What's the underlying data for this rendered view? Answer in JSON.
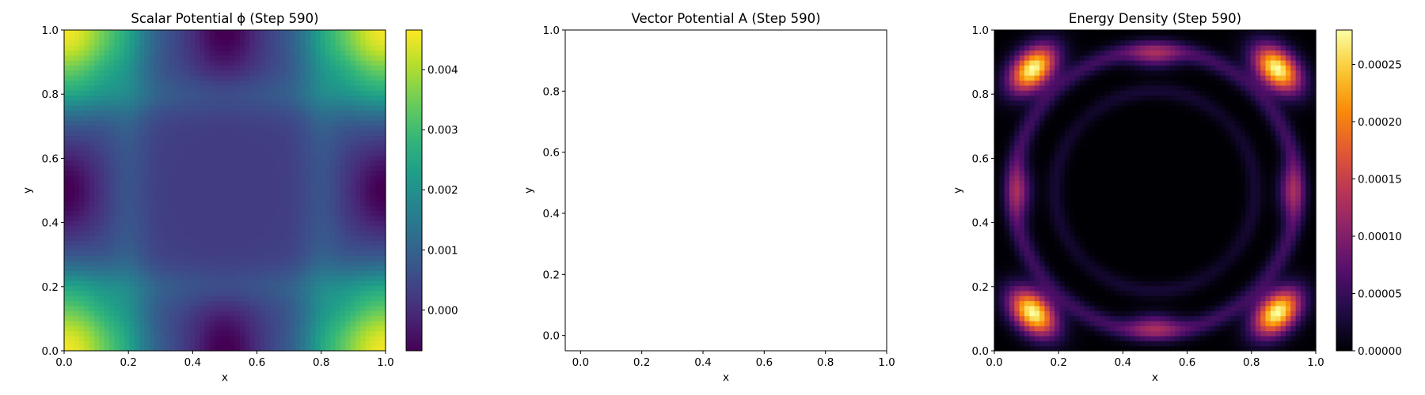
{
  "chart_data": [
    {
      "type": "heatmap",
      "title": "Scalar Potential ϕ (Step 590)",
      "xlabel": "x",
      "ylabel": "y",
      "xlim": [
        0.0,
        1.0
      ],
      "ylim": [
        0.0,
        1.0
      ],
      "x_ticks": [
        "0.0",
        "0.2",
        "0.4",
        "0.6",
        "0.8",
        "1.0"
      ],
      "y_ticks": [
        "0.0",
        "0.2",
        "0.4",
        "0.6",
        "0.8",
        "1.0"
      ],
      "colormap": "viridis",
      "colorbar": {
        "range": [
          -0.00068,
          0.00466
        ],
        "ticks": [
          0.0,
          0.001,
          0.002,
          0.003,
          0.004
        ],
        "tick_labels": [
          "0.000",
          "0.001",
          "0.002",
          "0.003",
          "0.004"
        ]
      },
      "field_description": "maxima ~0.0046 at the four corners; minima ~-0.0007 at edge midpoints (0.5,0),(0.5,1),(0,0.5),(1,0.5); interior ~0.0003-0.0012"
    },
    {
      "type": "quiver",
      "title": "Vector Potential A (Step 590)",
      "xlabel": "x",
      "ylabel": "y",
      "xlim": [
        -0.05,
        1.0
      ],
      "ylim": [
        -0.05,
        1.0
      ],
      "x_ticks": [
        "0.0",
        "0.2",
        "0.4",
        "0.6",
        "0.8",
        "1.0"
      ],
      "y_ticks": [
        "0.0",
        "0.2",
        "0.4",
        "0.6",
        "0.8",
        "1.0"
      ],
      "grid": false,
      "vectors": []
    },
    {
      "type": "heatmap",
      "title": "Energy Density (Step 590)",
      "xlabel": "x",
      "ylabel": "y",
      "xlim": [
        0.0,
        1.0
      ],
      "ylim": [
        0.0,
        1.0
      ],
      "x_ticks": [
        "0.0",
        "0.2",
        "0.4",
        "0.6",
        "0.8",
        "1.0"
      ],
      "y_ticks": [
        "0.0",
        "0.2",
        "0.4",
        "0.6",
        "0.8",
        "1.0"
      ],
      "colormap": "inferno",
      "colorbar": {
        "range": [
          0.0,
          0.00028
        ],
        "ticks": [
          0.0,
          5e-05,
          0.0001,
          0.00015,
          0.0002,
          0.00025
        ],
        "tick_labels": [
          "0.00000",
          "0.00005",
          "0.00010",
          "0.00015",
          "0.00020",
          "0.00025"
        ]
      },
      "field_description": "bright lobes ~0.00028 near (0.12,0.12),(0.88,0.12),(0.12,0.88),(0.88,0.88); faint curved arcs ~0.00008 near edge midpoints; dark center ~0"
    }
  ]
}
